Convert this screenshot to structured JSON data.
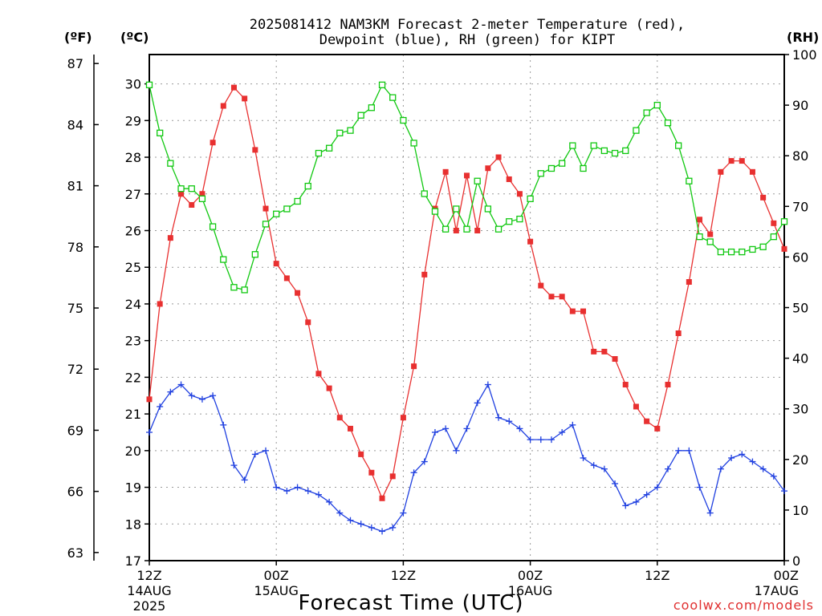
{
  "chart_data": {
    "type": "line",
    "title_line1": "2025081412 NAM3KM Forecast 2-meter Temperature (red),",
    "title_line2": "Dewpoint (blue), RH (green) for KIPT",
    "xlabel": "Forecast Time (UTC)",
    "credit": "coolwx.com/models",
    "unit_left_f": "(ºF)",
    "unit_left_c": "(ºC)",
    "unit_right": "(RH)",
    "x_range_hours": [
      0,
      60
    ],
    "ylim_c": [
      17,
      30.8
    ],
    "ylim_rh": [
      0,
      100
    ],
    "x_ticks": [
      {
        "hour": 0,
        "line1": "12Z",
        "line2": "14AUG",
        "line3": "2025"
      },
      {
        "hour": 12,
        "line1": "00Z",
        "line2": "15AUG",
        "line3": ""
      },
      {
        "hour": 24,
        "line1": "12Z",
        "line2": "",
        "line3": ""
      },
      {
        "hour": 36,
        "line1": "00Z",
        "line2": "16AUG",
        "line3": ""
      },
      {
        "hour": 48,
        "line1": "12Z",
        "line2": "",
        "line3": ""
      },
      {
        "hour": 60,
        "line1": "00Z",
        "line2": "17AUG",
        "line3": ""
      }
    ],
    "c_ticks": [
      17,
      18,
      19,
      20,
      21,
      22,
      23,
      24,
      25,
      26,
      27,
      28,
      29,
      30
    ],
    "f_ticks": [
      63,
      66,
      69,
      72,
      75,
      78,
      81,
      84,
      87
    ],
    "rh_ticks": [
      0,
      10,
      20,
      30,
      40,
      50,
      60,
      70,
      80,
      90,
      100
    ],
    "series": [
      {
        "name": "Temperature",
        "color": "#e83030",
        "axis": "c",
        "x": [
          0,
          1,
          2,
          3,
          4,
          5,
          6,
          7,
          8,
          9,
          10,
          11,
          12,
          13,
          14,
          15,
          16,
          17,
          18,
          19,
          20,
          21,
          22,
          23,
          24,
          25,
          26,
          27,
          28,
          29,
          30,
          31,
          32,
          33,
          34,
          35,
          36,
          37,
          38,
          39,
          40,
          41,
          42,
          43,
          44,
          45,
          46,
          47,
          48,
          49,
          50,
          51,
          52,
          53,
          54,
          55,
          56,
          57,
          58,
          59,
          60
        ],
        "values": [
          21.4,
          24.0,
          25.8,
          27.0,
          26.7,
          27.0,
          28.4,
          29.4,
          29.9,
          29.6,
          28.2,
          26.6,
          25.1,
          24.7,
          24.3,
          23.5,
          22.1,
          21.7,
          20.9,
          20.6,
          19.9,
          19.4,
          18.7,
          19.3,
          20.9,
          22.3,
          24.8,
          26.6,
          27.6,
          26.0,
          27.5,
          26.0,
          27.7,
          28.0,
          27.4,
          27.0,
          25.7,
          24.5,
          24.2,
          24.2,
          23.8,
          23.8,
          22.7,
          22.7,
          22.5,
          21.8,
          21.2,
          20.8,
          20.6,
          21.8,
          23.2,
          24.6,
          26.3,
          25.9,
          27.6,
          27.9,
          27.9,
          27.6,
          26.9,
          26.2,
          25.5
        ]
      },
      {
        "name": "Dewpoint",
        "color": "#2040e0",
        "axis": "c",
        "x": [
          0,
          1,
          2,
          3,
          4,
          5,
          6,
          7,
          8,
          9,
          10,
          11,
          12,
          13,
          14,
          15,
          16,
          17,
          18,
          19,
          20,
          21,
          22,
          23,
          24,
          25,
          26,
          27,
          28,
          29,
          30,
          31,
          32,
          33,
          34,
          35,
          36,
          37,
          38,
          39,
          40,
          41,
          42,
          43,
          44,
          45,
          46,
          47,
          48,
          49,
          50,
          51,
          52,
          53,
          54,
          55,
          56,
          57,
          58,
          59,
          60
        ],
        "values": [
          20.5,
          21.2,
          21.6,
          21.8,
          21.5,
          21.4,
          21.5,
          20.7,
          19.6,
          19.2,
          19.9,
          20.0,
          19.0,
          18.9,
          19.0,
          18.9,
          18.8,
          18.6,
          18.3,
          18.1,
          18.0,
          17.9,
          17.8,
          17.9,
          18.3,
          19.4,
          19.7,
          20.5,
          20.6,
          20.0,
          20.6,
          21.3,
          21.8,
          20.9,
          20.8,
          20.6,
          20.3,
          20.3,
          20.3,
          20.5,
          20.7,
          19.8,
          19.6,
          19.5,
          19.1,
          18.5,
          18.6,
          18.8,
          19.0,
          19.5,
          20.0,
          20.0,
          19.0,
          18.3,
          19.5,
          19.8,
          19.9,
          19.7,
          19.5,
          19.3,
          18.9
        ]
      },
      {
        "name": "RH",
        "color": "#10c810",
        "axis": "rh",
        "x": [
          0,
          1,
          2,
          3,
          4,
          5,
          6,
          7,
          8,
          9,
          10,
          11,
          12,
          13,
          14,
          15,
          16,
          17,
          18,
          19,
          20,
          21,
          22,
          23,
          24,
          25,
          26,
          27,
          28,
          29,
          30,
          31,
          32,
          33,
          34,
          35,
          36,
          37,
          38,
          39,
          40,
          41,
          42,
          43,
          44,
          45,
          46,
          47,
          48,
          49,
          50,
          51,
          52,
          53,
          54,
          55,
          56,
          57,
          58,
          59,
          60
        ],
        "values": [
          94,
          84.5,
          78.5,
          73.5,
          73.5,
          71.5,
          66,
          59.5,
          54,
          53.5,
          60.5,
          66.5,
          68.5,
          69.5,
          71,
          74,
          80.5,
          81.5,
          84.5,
          85,
          88,
          89.5,
          94,
          91.5,
          87,
          82.5,
          72.5,
          69,
          65.5,
          69.5,
          65.5,
          75,
          69.5,
          65.5,
          67,
          67.5,
          71.5,
          76.5,
          77.5,
          78.5,
          82,
          77.5,
          82,
          81,
          80.5,
          81,
          85,
          88.5,
          90,
          86.5,
          82,
          75,
          64,
          63,
          61,
          61,
          61,
          61.5,
          62,
          64,
          67
        ]
      }
    ]
  }
}
